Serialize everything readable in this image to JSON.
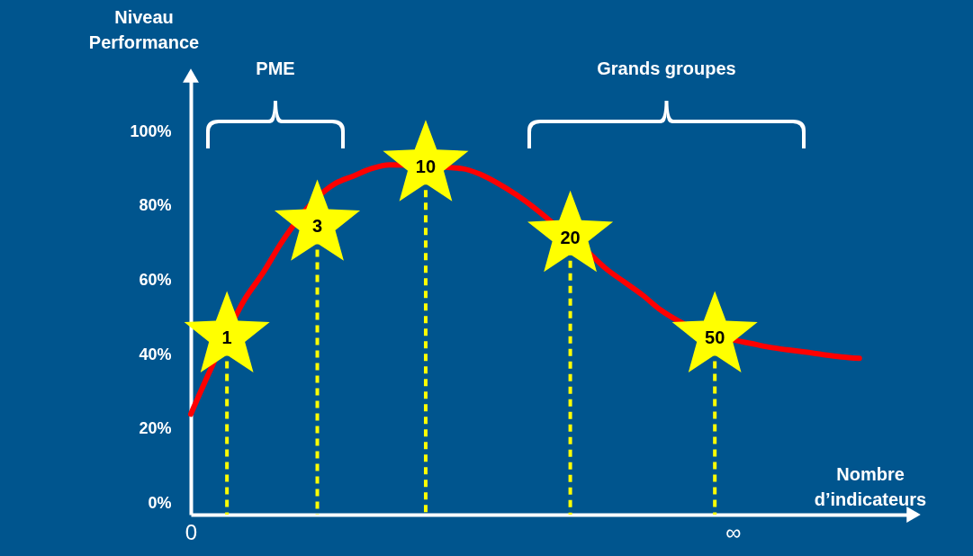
{
  "chart_data": {
    "type": "line",
    "xlabel": "Nombre d’indicateurs",
    "ylabel": "Niveau Performance",
    "ylim": [
      -3,
      115
    ],
    "categories": [
      "0",
      null,
      null,
      null,
      null,
      null,
      null,
      null,
      null,
      null,
      null,
      null,
      null,
      null,
      null,
      null,
      null,
      null,
      null,
      null,
      null,
      null,
      null,
      null,
      null,
      null,
      null,
      null,
      null,
      null,
      "∞",
      null,
      null,
      null,
      null,
      null,
      null,
      null,
      null,
      null,
      null
    ],
    "yticks": [
      {
        "value": 0,
        "label": "0%"
      },
      {
        "value": 20,
        "label": "20%"
      },
      {
        "value": 40,
        "label": "40%"
      },
      {
        "value": 60,
        "label": "60%"
      },
      {
        "value": 80,
        "label": "80%"
      },
      {
        "value": 100,
        "label": "100%"
      }
    ],
    "annotations": [
      "1",
      "3",
      "10",
      "20",
      "50",
      "PME",
      "Grands groupes"
    ],
    "series": [
      {
        "color": "#ff0000",
        "values": [
          24,
          35,
          null,
          55,
          62,
          70,
          null,
          null,
          86,
          88,
          90,
          91,
          null,
          null,
          null,
          90,
          88.5,
          86,
          83,
          79.5,
          75.5,
          null,
          67.5,
          63,
          59.5,
          56,
          52,
          49,
          null,
          null,
          44,
          43,
          42,
          41.3,
          40.7,
          40,
          39.4,
          39,
          null,
          null,
          null
        ]
      },
      {
        "type": "lollipop",
        "color": "#ffff00",
        "marker": "star",
        "line_style": "dashed",
        "values": [
          null,
          null,
          45,
          null,
          null,
          null,
          null,
          75,
          null,
          null,
          null,
          null,
          null,
          91,
          null,
          null,
          null,
          null,
          null,
          null,
          null,
          72,
          null,
          null,
          null,
          null,
          null,
          null,
          null,
          45,
          null,
          null,
          null,
          null,
          null,
          null,
          null,
          null,
          null,
          null,
          null
        ]
      }
    ]
  }
}
